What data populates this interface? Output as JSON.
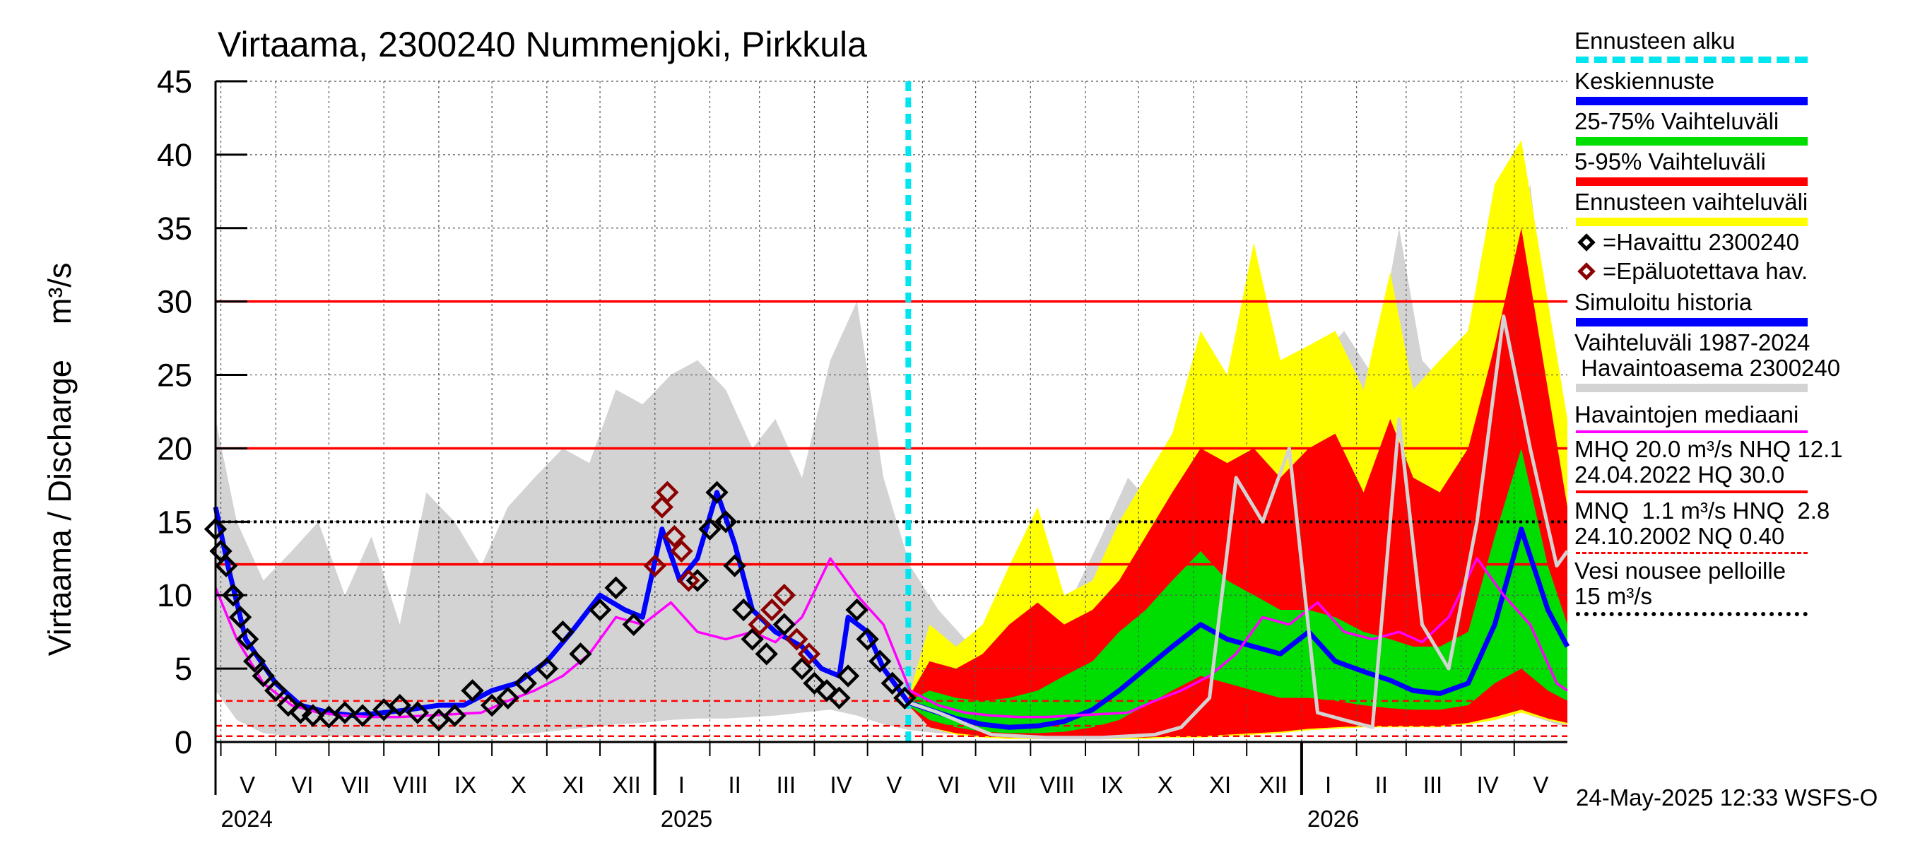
{
  "chart_data": {
    "type": "area",
    "title": "Virtaama, 2300240 Nummenjoki, Pirkkula",
    "ylabel": "Virtaama / Discharge    m³/s",
    "ylim": [
      0,
      45
    ],
    "yticks": [
      0,
      5,
      10,
      15,
      20,
      25,
      30,
      35,
      40,
      45
    ],
    "x_start": "2024-04-28",
    "x_end": "2026-05-31",
    "forecast_start": "2025-05-24",
    "month_labels": [
      {
        "label": "V",
        "date": "2024-05-16"
      },
      {
        "label": "VI",
        "date": "2024-06-16"
      },
      {
        "label": "VII",
        "date": "2024-07-16"
      },
      {
        "label": "VIII",
        "date": "2024-08-16"
      },
      {
        "label": "IX",
        "date": "2024-09-16"
      },
      {
        "label": "X",
        "date": "2024-10-16"
      },
      {
        "label": "XI",
        "date": "2024-11-16"
      },
      {
        "label": "XII",
        "date": "2024-12-16"
      },
      {
        "label": "I",
        "date": "2025-01-16"
      },
      {
        "label": "II",
        "date": "2025-02-15"
      },
      {
        "label": "III",
        "date": "2025-03-16"
      },
      {
        "label": "IV",
        "date": "2025-04-16"
      },
      {
        "label": "V",
        "date": "2025-05-16"
      },
      {
        "label": "VI",
        "date": "2025-06-16"
      },
      {
        "label": "VII",
        "date": "2025-07-16"
      },
      {
        "label": "VIII",
        "date": "2025-08-16"
      },
      {
        "label": "IX",
        "date": "2025-09-16"
      },
      {
        "label": "X",
        "date": "2025-10-16"
      },
      {
        "label": "XI",
        "date": "2025-11-16"
      },
      {
        "label": "XII",
        "date": "2025-12-16"
      },
      {
        "label": "I",
        "date": "2026-01-16"
      },
      {
        "label": "II",
        "date": "2026-02-15"
      },
      {
        "label": "III",
        "date": "2026-03-16"
      },
      {
        "label": "IV",
        "date": "2026-04-16"
      },
      {
        "label": "V",
        "date": "2026-05-16"
      }
    ],
    "year_labels": [
      {
        "label": "2024",
        "date": "2024-05-01"
      },
      {
        "label": "2025",
        "date": "2025-01-01"
      },
      {
        "label": "2026",
        "date": "2026-01-01"
      }
    ],
    "reference_lines": [
      {
        "name": "HQ",
        "value": 30.0,
        "color": "#ff0000",
        "style": "solid"
      },
      {
        "name": "MHQ",
        "value": 20.0,
        "color": "#ff0000",
        "style": "solid"
      },
      {
        "name": "Vesi nousee pelloille",
        "value": 15.0,
        "color": "#000000",
        "style": "dotted"
      },
      {
        "name": "NHQ",
        "value": 12.1,
        "color": "#ff0000",
        "style": "solid"
      },
      {
        "name": "HNQ",
        "value": 2.8,
        "color": "#ff0000",
        "style": "dashed"
      },
      {
        "name": "MNQ",
        "value": 1.1,
        "color": "#ff0000",
        "style": "dashed"
      },
      {
        "name": "NQ",
        "value": 0.4,
        "color": "#ff0000",
        "style": "dashed"
      }
    ],
    "history_band": {
      "name": "Vaihteluväli 1987-2024",
      "color": "#d3d3d3",
      "dates": [
        "2024-04-28",
        "2024-05-10",
        "2024-05-25",
        "2024-06-10",
        "2024-06-25",
        "2024-07-10",
        "2024-07-25",
        "2024-08-10",
        "2024-08-25",
        "2024-09-10",
        "2024-09-25",
        "2024-10-10",
        "2024-10-25",
        "2024-11-10",
        "2024-11-25",
        "2024-12-10",
        "2024-12-25",
        "2025-01-10",
        "2025-01-25",
        "2025-02-10",
        "2025-02-25",
        "2025-03-10",
        "2025-03-25",
        "2025-04-10",
        "2025-04-25",
        "2025-05-10",
        "2025-05-25",
        "2025-06-10",
        "2025-06-25",
        "2025-07-10",
        "2025-07-25",
        "2025-08-10",
        "2025-08-25",
        "2025-09-10",
        "2025-09-25",
        "2025-10-10",
        "2025-10-25",
        "2025-11-10",
        "2025-11-25",
        "2025-12-10",
        "2025-12-25",
        "2026-01-10",
        "2026-01-25",
        "2026-02-10",
        "2026-02-25",
        "2026-03-10",
        "2026-03-25",
        "2026-04-10",
        "2026-04-25",
        "2026-05-10",
        "2026-05-25",
        "2026-05-31"
      ],
      "low": [
        3.5,
        1.5,
        0.6,
        0.4,
        0.4,
        0.4,
        0.4,
        0.4,
        0.4,
        0.4,
        0.4,
        0.5,
        0.6,
        0.8,
        1.0,
        1.2,
        1.3,
        1.5,
        1.6,
        1.6,
        1.7,
        1.8,
        2.0,
        2.2,
        1.8,
        1.2,
        0.8,
        0.6,
        0.5,
        0.4,
        0.4,
        0.4,
        0.4,
        0.4,
        0.4,
        0.5,
        0.6,
        0.8,
        0.9,
        1.0,
        1.2,
        1.4,
        1.4,
        1.4,
        1.3,
        1.4,
        1.6,
        2.0,
        2.5,
        1.8,
        1.2,
        1.0
      ],
      "high": [
        22,
        15,
        11,
        13,
        15,
        10,
        14,
        8,
        17,
        15,
        12,
        16,
        18,
        20,
        19,
        24,
        23,
        25,
        26,
        24,
        20,
        22,
        18,
        26,
        30,
        18,
        12,
        9,
        7,
        6,
        6,
        7,
        10,
        14,
        18,
        16,
        20,
        21,
        25,
        23,
        22,
        26,
        28,
        25,
        35,
        26,
        24,
        30,
        30,
        38,
        22,
        18
      ]
    },
    "forecast_band_5_95_envelope": {
      "name": "Ennusteen vaihteluväli",
      "color": "#ffff00",
      "dates": [
        "2025-05-24",
        "2025-06-05",
        "2025-06-20",
        "2025-07-05",
        "2025-07-20",
        "2025-08-05",
        "2025-08-20",
        "2025-09-05",
        "2025-09-20",
        "2025-10-05",
        "2025-10-20",
        "2025-11-05",
        "2025-11-20",
        "2025-12-05",
        "2025-12-20",
        "2026-01-05",
        "2026-01-20",
        "2026-02-05",
        "2026-02-20",
        "2026-03-05",
        "2026-03-20",
        "2026-04-05",
        "2026-04-20",
        "2026-05-05",
        "2026-05-20",
        "2026-05-31"
      ],
      "low": [
        2.5,
        1.0,
        0.5,
        0.3,
        0.2,
        0.2,
        0.2,
        0.2,
        0.2,
        0.2,
        0.3,
        0.3,
        0.4,
        0.5,
        0.6,
        0.8,
        0.9,
        1.0,
        1.0,
        1.0,
        1.0,
        1.2,
        1.5,
        2.0,
        1.5,
        1.2
      ],
      "high": [
        3.0,
        8.0,
        6.5,
        8.0,
        12.0,
        16.0,
        10.0,
        11.0,
        15.0,
        18.0,
        21.0,
        28.0,
        25.0,
        34.0,
        26.0,
        27.0,
        28.0,
        24.0,
        32.0,
        24.0,
        26.0,
        28.0,
        38.0,
        41.0,
        30.0,
        22.0
      ]
    },
    "forecast_band_5_95": {
      "name": "5-95% Vaihteluväli",
      "color": "#ff0000",
      "dates": [
        "2025-05-24",
        "2025-06-05",
        "2025-06-20",
        "2025-07-05",
        "2025-07-20",
        "2025-08-05",
        "2025-08-20",
        "2025-09-05",
        "2025-09-20",
        "2025-10-05",
        "2025-10-20",
        "2025-11-05",
        "2025-11-20",
        "2025-12-05",
        "2025-12-20",
        "2026-01-05",
        "2026-01-20",
        "2026-02-05",
        "2026-02-20",
        "2026-03-05",
        "2026-03-20",
        "2026-04-05",
        "2026-04-20",
        "2026-05-05",
        "2026-05-20",
        "2026-05-31"
      ],
      "low": [
        2.5,
        1.0,
        0.6,
        0.4,
        0.3,
        0.3,
        0.3,
        0.3,
        0.3,
        0.3,
        0.4,
        0.4,
        0.5,
        0.6,
        0.7,
        0.9,
        1.0,
        1.1,
        1.1,
        1.1,
        1.1,
        1.3,
        1.7,
        2.2,
        1.6,
        1.3
      ],
      "high": [
        3.0,
        5.5,
        5.0,
        6.0,
        8.0,
        9.5,
        8.0,
        9.0,
        11.0,
        14.0,
        17.0,
        20.0,
        19.0,
        20.0,
        18.0,
        20.0,
        21.0,
        17.0,
        22.0,
        18.0,
        17.0,
        20.0,
        27.0,
        35.0,
        24.0,
        16.0
      ]
    },
    "forecast_band_25_75": {
      "name": "25-75% Vaihteluväli",
      "color": "#00dd00",
      "dates": [
        "2025-05-24",
        "2025-06-05",
        "2025-06-20",
        "2025-07-05",
        "2025-07-20",
        "2025-08-05",
        "2025-08-20",
        "2025-09-05",
        "2025-09-20",
        "2025-10-05",
        "2025-10-20",
        "2025-11-05",
        "2025-11-20",
        "2025-12-05",
        "2025-12-20",
        "2026-01-05",
        "2026-01-20",
        "2026-02-05",
        "2026-02-20",
        "2026-03-05",
        "2026-03-20",
        "2026-04-05",
        "2026-04-20",
        "2026-05-05",
        "2026-05-20",
        "2026-05-31"
      ],
      "low": [
        2.5,
        1.5,
        1.0,
        0.7,
        0.6,
        0.6,
        0.7,
        1.0,
        1.5,
        2.5,
        3.5,
        4.5,
        4.0,
        3.5,
        3.0,
        3.0,
        2.8,
        2.5,
        2.3,
        2.2,
        2.2,
        2.5,
        4.0,
        5.0,
        3.5,
        2.8
      ],
      "high": [
        2.8,
        3.5,
        3.0,
        2.8,
        3.0,
        3.5,
        4.5,
        5.5,
        7.5,
        9.0,
        11.0,
        13.0,
        11.0,
        10.0,
        9.0,
        9.0,
        8.5,
        7.5,
        7.0,
        6.5,
        6.5,
        7.5,
        14.0,
        20.0,
        12.0,
        8.0
      ]
    },
    "series": [
      {
        "name": "Keskiennuste",
        "color": "#0000ff",
        "x": [
          "2025-05-24",
          "2025-06-05",
          "2025-06-20",
          "2025-07-05",
          "2025-07-20",
          "2025-08-05",
          "2025-08-20",
          "2025-09-05",
          "2025-09-20",
          "2025-10-05",
          "2025-10-20",
          "2025-11-05",
          "2025-11-20",
          "2025-12-05",
          "2025-12-20",
          "2026-01-05",
          "2026-01-20",
          "2026-02-05",
          "2026-02-20",
          "2026-03-05",
          "2026-03-20",
          "2026-04-05",
          "2026-04-20",
          "2026-05-05",
          "2026-05-20",
          "2026-05-31"
        ],
        "y": [
          2.7,
          2.2,
          1.6,
          1.2,
          1.0,
          1.1,
          1.4,
          2.2,
          3.5,
          5.0,
          6.5,
          8.0,
          7.0,
          6.5,
          6.0,
          7.5,
          5.5,
          4.8,
          4.2,
          3.5,
          3.3,
          4.0,
          8.0,
          14.5,
          9.0,
          6.5
        ]
      },
      {
        "name": "Simuloitu historia",
        "color": "#0000ff",
        "x": [
          "2024-04-28",
          "2024-05-05",
          "2024-05-15",
          "2024-06-01",
          "2024-06-15",
          "2024-07-01",
          "2024-07-15",
          "2024-08-01",
          "2024-08-15",
          "2024-09-01",
          "2024-09-15",
          "2024-10-01",
          "2024-10-15",
          "2024-11-01",
          "2024-11-15",
          "2024-12-01",
          "2024-12-15",
          "2024-12-25",
          "2025-01-05",
          "2025-01-15",
          "2025-01-25",
          "2025-02-05",
          "2025-02-15",
          "2025-02-25",
          "2025-03-10",
          "2025-03-25",
          "2025-04-05",
          "2025-04-15",
          "2025-04-20",
          "2025-05-01",
          "2025-05-10",
          "2025-05-24"
        ],
        "y": [
          16.0,
          12.0,
          7.0,
          4.0,
          2.5,
          2.0,
          1.8,
          2.0,
          2.2,
          2.5,
          2.5,
          3.5,
          4.0,
          5.5,
          7.5,
          10.0,
          9.0,
          8.5,
          14.5,
          11.0,
          12.5,
          17.0,
          13.5,
          9.0,
          7.5,
          6.5,
          5.0,
          4.5,
          8.5,
          7.5,
          5.0,
          2.7
        ]
      },
      {
        "name": "Havaintojen mediaani",
        "color": "#ff00ff",
        "x": [
          "2024-04-28",
          "2024-05-10",
          "2024-05-25",
          "2024-06-10",
          "2024-06-25",
          "2024-07-10",
          "2024-07-25",
          "2024-08-10",
          "2024-08-25",
          "2024-09-10",
          "2024-09-25",
          "2024-10-10",
          "2024-10-25",
          "2024-11-10",
          "2024-11-25",
          "2024-12-10",
          "2024-12-25",
          "2025-01-10",
          "2025-01-25",
          "2025-02-10",
          "2025-02-25",
          "2025-03-10",
          "2025-03-25",
          "2025-04-10",
          "2025-04-25",
          "2025-05-10",
          "2025-05-25",
          "2025-06-10",
          "2025-06-25",
          "2025-07-10",
          "2025-07-25",
          "2025-08-10",
          "2025-08-25",
          "2025-09-10",
          "2025-09-25",
          "2025-10-10",
          "2025-10-25",
          "2025-11-10",
          "2025-11-25",
          "2025-12-10",
          "2025-12-25",
          "2026-01-10",
          "2026-01-25",
          "2026-02-10",
          "2026-02-25",
          "2026-03-10",
          "2026-03-25",
          "2026-04-10",
          "2026-04-25",
          "2026-05-10",
          "2026-05-25",
          "2026-05-31"
        ],
        "y": [
          10.5,
          7.0,
          4.0,
          2.5,
          2.0,
          1.8,
          1.7,
          1.7,
          1.8,
          1.9,
          2.0,
          2.8,
          3.5,
          4.5,
          6.0,
          8.5,
          8.0,
          9.5,
          7.5,
          7.0,
          7.5,
          6.8,
          8.5,
          12.5,
          10.0,
          8.0,
          3.5,
          2.5,
          2.0,
          1.8,
          1.7,
          1.7,
          1.8,
          1.9,
          2.0,
          2.8,
          3.5,
          4.5,
          6.0,
          8.5,
          8.0,
          9.5,
          7.5,
          7.0,
          7.5,
          6.8,
          8.5,
          12.5,
          10.0,
          8.0,
          4.0,
          3.5
        ]
      },
      {
        "name": "Havaintojen mediaani (forecast-year light)",
        "color": "#d3d3d3",
        "x": [
          "2025-05-24",
          "2025-06-10",
          "2025-07-10",
          "2025-08-10",
          "2025-09-10",
          "2025-10-10",
          "2025-10-25",
          "2025-11-10",
          "2025-11-25",
          "2025-12-10",
          "2025-12-25",
          "2026-01-10",
          "2026-01-25",
          "2026-02-10",
          "2026-02-25",
          "2026-03-10",
          "2026-03-25",
          "2026-04-10",
          "2026-04-25",
          "2026-05-10",
          "2026-05-25",
          "2026-05-31"
        ],
        "y": [
          2.7,
          2.0,
          0.5,
          0.3,
          0.3,
          0.5,
          1.0,
          3.0,
          18.0,
          15.0,
          20.0,
          2.0,
          1.5,
          1.0,
          22.0,
          8.0,
          5.0,
          15.0,
          29.0,
          20.0,
          12.0,
          13.0
        ]
      }
    ],
    "observed": {
      "name": "=Havaittu 2300240",
      "color": "#000000",
      "x": [
        "2024-04-28",
        "2024-05-01",
        "2024-05-04",
        "2024-05-08",
        "2024-05-12",
        "2024-05-16",
        "2024-05-20",
        "2024-05-25",
        "2024-06-01",
        "2024-06-08",
        "2024-06-15",
        "2024-06-22",
        "2024-07-01",
        "2024-07-10",
        "2024-07-20",
        "2024-08-01",
        "2024-08-10",
        "2024-08-20",
        "2024-09-01",
        "2024-09-10",
        "2024-09-20",
        "2024-10-01",
        "2024-10-10",
        "2024-10-20",
        "2024-11-01",
        "2024-11-10",
        "2024-11-20",
        "2024-12-01",
        "2024-12-10",
        "2024-12-20",
        "2025-01-25",
        "2025-02-01",
        "2025-02-05",
        "2025-02-10",
        "2025-02-15",
        "2025-02-20",
        "2025-02-25",
        "2025-03-05",
        "2025-03-15",
        "2025-03-25",
        "2025-04-01",
        "2025-04-08",
        "2025-04-15",
        "2025-04-20",
        "2025-04-25",
        "2025-05-01",
        "2025-05-08",
        "2025-05-15",
        "2025-05-22"
      ],
      "y": [
        14.5,
        13.0,
        12.0,
        10.0,
        8.5,
        7.0,
        5.5,
        4.5,
        3.5,
        2.5,
        2.0,
        1.8,
        1.7,
        2.0,
        1.8,
        2.2,
        2.5,
        2.0,
        1.5,
        1.8,
        3.5,
        2.5,
        3.0,
        4.0,
        5.0,
        7.5,
        6.0,
        9.0,
        10.5,
        8.0,
        11.0,
        14.5,
        17.0,
        15.0,
        12.0,
        9.0,
        7.0,
        6.0,
        8.0,
        5.0,
        4.0,
        3.5,
        3.0,
        4.5,
        9.0,
        7.0,
        5.5,
        4.0,
        3.0
      ]
    },
    "unreliable": {
      "name": "=Epäluotettava hav.",
      "color": "#8b0000",
      "x": [
        "2025-01-01",
        "2025-01-05",
        "2025-01-08",
        "2025-01-12",
        "2025-01-16",
        "2025-01-20",
        "2025-03-01",
        "2025-03-08",
        "2025-03-15",
        "2025-03-22",
        "2025-03-29"
      ],
      "y": [
        12.0,
        16.0,
        17.0,
        14.0,
        13.0,
        11.0,
        8.0,
        9.0,
        10.0,
        7.0,
        6.0
      ]
    },
    "legend": [
      {
        "label": "Ennusteen alku",
        "color": "#00e5ee",
        "kind": "dashed"
      },
      {
        "label": "Keskiennuste",
        "color": "#0000ff",
        "kind": "line"
      },
      {
        "label": "25-75% Vaihteluväli",
        "color": "#00dd00",
        "kind": "line"
      },
      {
        "label": "5-95% Vaihteluväli",
        "color": "#ff0000",
        "kind": "line"
      },
      {
        "label": "Ennusteen vaihteluväli",
        "color": "#ffff00",
        "kind": "line"
      },
      {
        "label": "=Havaittu 2300240",
        "color": "#000000",
        "kind": "marker"
      },
      {
        "label": "=Epäluotettava hav.",
        "color": "#8b0000",
        "kind": "marker"
      },
      {
        "label": "Simuloitu historia",
        "color": "#0000ff",
        "kind": "line"
      },
      {
        "label": "Vaihteluväli 1987-2024\n Havaintoasema 2300240",
        "color": "#d3d3d3",
        "kind": "line"
      },
      {
        "label": "Havaintojen mediaani",
        "color": "#ff00ff",
        "kind": "thin"
      },
      {
        "label": "MHQ 20.0 m³/s NHQ 12.1\n24.04.2022 HQ 30.0",
        "color": "#ff0000",
        "kind": "thin"
      },
      {
        "label": "MNQ  1.1 m³/s HNQ  2.8\n24.10.2002 NQ 0.40",
        "color": "#ff0000",
        "kind": "dashed-thin"
      },
      {
        "label": "Vesi nousee pelloille\n15 m³/s",
        "color": "#000000",
        "kind": "dotted"
      }
    ],
    "footer": "24-May-2025 12:33 WSFS-O",
    "grid": true,
    "legend_position": "right"
  }
}
